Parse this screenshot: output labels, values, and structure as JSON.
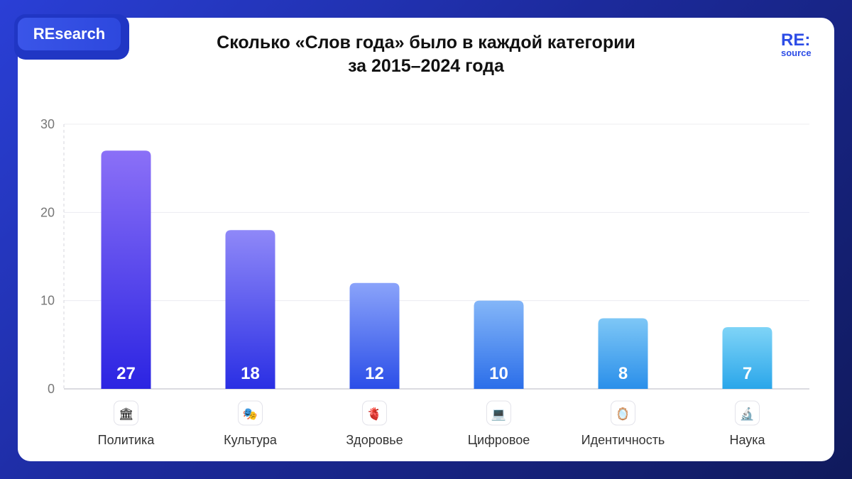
{
  "badge": {
    "label": "REsearch"
  },
  "logo": {
    "main": "RE:",
    "sub": "source"
  },
  "colors": {
    "bar_top": "#8a6cf5",
    "bar_bottom": "#2b2ae0",
    "bar_light_top": "#7fd4f7",
    "bar_light_bottom": "#2aa6ea"
  },
  "chart_data": {
    "type": "bar",
    "title_lines": [
      "Сколько «Слов года» было в каждой категории",
      "за 2015–2024 года"
    ],
    "categories": [
      "Политика",
      "Культура",
      "Здоровье",
      "Цифровое",
      "Идентичность",
      "Наука"
    ],
    "icons": [
      "classical-building-icon",
      "performing-arts-icon",
      "anatomical-heart-icon",
      "laptop-icon",
      "mirror-icon",
      "microscope-icon"
    ],
    "icon_glyphs": [
      "🏛",
      "🎭",
      "🫀",
      "💻",
      "🪞",
      "🔬"
    ],
    "values": [
      27,
      18,
      12,
      10,
      8,
      7
    ],
    "value_labels": [
      "27",
      "18",
      "12",
      "10",
      "8",
      "7"
    ],
    "yticks": [
      0,
      10,
      20,
      30
    ],
    "ylim": [
      0,
      30
    ],
    "grid": true,
    "xlabel": "",
    "ylabel": ""
  }
}
